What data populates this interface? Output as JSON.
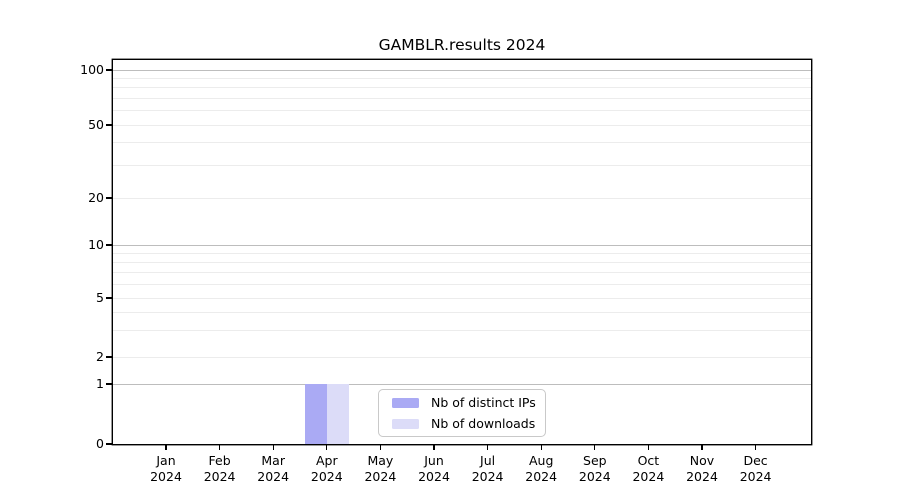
{
  "chart_data": {
    "type": "bar",
    "title": "GAMBLR.results 2024",
    "categories": [
      "Jan\n2024",
      "Feb\n2024",
      "Mar\n2024",
      "Apr\n2024",
      "May\n2024",
      "Jun\n2024",
      "Jul\n2024",
      "Aug\n2024",
      "Sep\n2024",
      "Oct\n2024",
      "Nov\n2024",
      "Dec\n2024"
    ],
    "series": [
      {
        "name": "Nb of distinct IPs",
        "color": "#aaaaf4",
        "values": [
          0,
          0,
          0,
          1,
          0,
          0,
          0,
          0,
          0,
          0,
          0,
          0
        ]
      },
      {
        "name": "Nb of downloads",
        "color": "#dcdcf8",
        "values": [
          0,
          0,
          0,
          1,
          0,
          0,
          0,
          0,
          0,
          0,
          0,
          0
        ]
      }
    ],
    "xlabel": "",
    "ylabel": "",
    "y_ticks": [
      0,
      1,
      2,
      5,
      10,
      20,
      50,
      100
    ],
    "y_axis_scale": "custom log-like with linear 0-1 segment",
    "ylim": [
      0,
      110
    ],
    "grid": {
      "on": true,
      "major_values": [
        1,
        10,
        100
      ],
      "minor_values": [
        2,
        3,
        4,
        5,
        6,
        7,
        8,
        9,
        20,
        30,
        40,
        50,
        60,
        70,
        80,
        90
      ],
      "major_color": "#bdbdbd",
      "minor_color": "#ececec"
    },
    "legend": {
      "position": "inside lower middle",
      "entries": [
        "Nb of distinct IPs",
        "Nb of downloads"
      ]
    },
    "layout_hints": {
      "y_anchor_fractions": [
        [
          0,
          1.0
        ],
        [
          1,
          0.84375
        ],
        [
          2,
          0.7734
        ],
        [
          5,
          0.6198
        ],
        [
          10,
          0.4818
        ],
        [
          20,
          0.3594
        ],
        [
          50,
          0.1693
        ],
        [
          100,
          0.026
        ]
      ],
      "x_first_tick_fraction": 0.0759,
      "x_tick_step_fraction": 0.0768,
      "bar_width_fraction": 0.0315
    }
  }
}
